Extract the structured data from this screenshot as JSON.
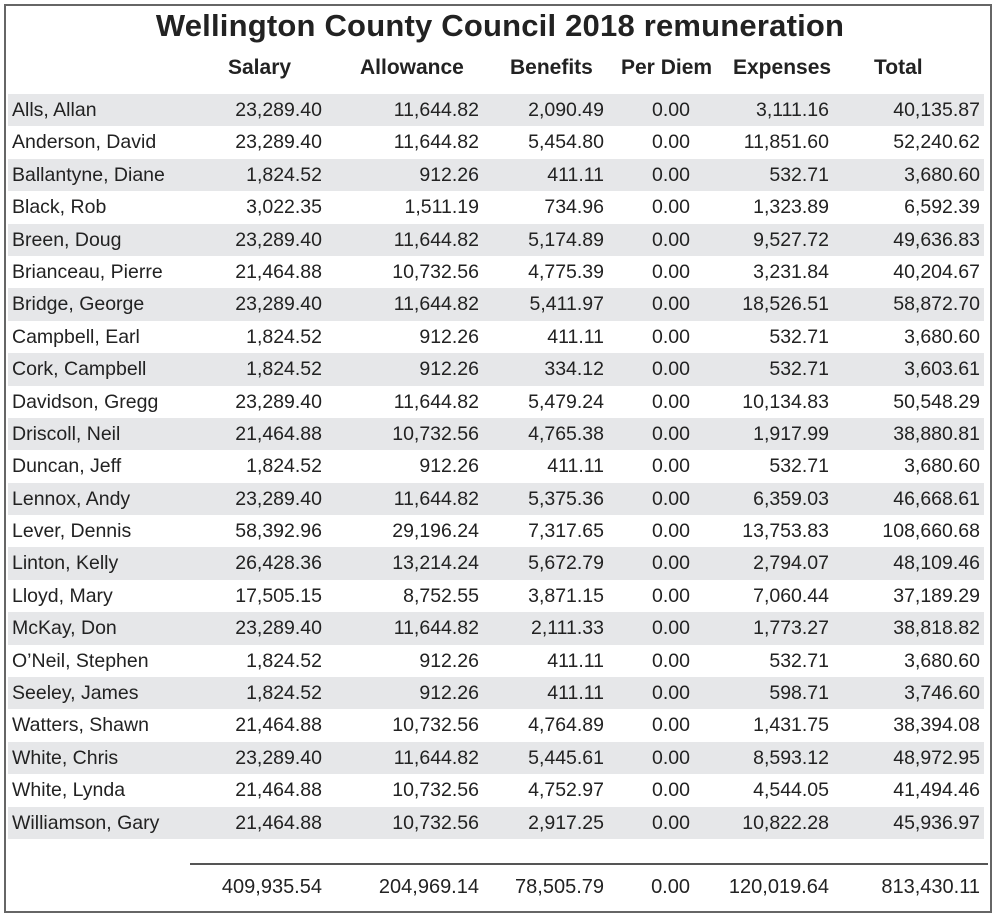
{
  "title": "Wellington County Council 2018 remuneration",
  "columns": [
    "Salary",
    "Allowance",
    "Benefits",
    "Per Diem",
    "Expenses",
    "Total"
  ],
  "rows": [
    {
      "name": "Alls, Allan",
      "salary": "23,289.40",
      "allowance": "11,644.82",
      "benefits": "2,090.49",
      "per_diem": "0.00",
      "expenses": "3,111.16",
      "total": "40,135.87"
    },
    {
      "name": "Anderson, David",
      "salary": "23,289.40",
      "allowance": "11,644.82",
      "benefits": "5,454.80",
      "per_diem": "0.00",
      "expenses": "11,851.60",
      "total": "52,240.62"
    },
    {
      "name": "Ballantyne, Diane",
      "salary": "1,824.52",
      "allowance": "912.26",
      "benefits": "411.11",
      "per_diem": "0.00",
      "expenses": "532.71",
      "total": "3,680.60"
    },
    {
      "name": "Black, Rob",
      "salary": "3,022.35",
      "allowance": "1,511.19",
      "benefits": "734.96",
      "per_diem": "0.00",
      "expenses": "1,323.89",
      "total": "6,592.39"
    },
    {
      "name": "Breen, Doug",
      "salary": "23,289.40",
      "allowance": "11,644.82",
      "benefits": "5,174.89",
      "per_diem": "0.00",
      "expenses": "9,527.72",
      "total": "49,636.83"
    },
    {
      "name": "Brianceau, Pierre",
      "salary": "21,464.88",
      "allowance": "10,732.56",
      "benefits": "4,775.39",
      "per_diem": "0.00",
      "expenses": "3,231.84",
      "total": "40,204.67"
    },
    {
      "name": "Bridge, George",
      "salary": "23,289.40",
      "allowance": "11,644.82",
      "benefits": "5,411.97",
      "per_diem": "0.00",
      "expenses": "18,526.51",
      "total": "58,872.70"
    },
    {
      "name": "Campbell, Earl",
      "salary": "1,824.52",
      "allowance": "912.26",
      "benefits": "411.11",
      "per_diem": "0.00",
      "expenses": "532.71",
      "total": "3,680.60"
    },
    {
      "name": "Cork, Campbell",
      "salary": "1,824.52",
      "allowance": "912.26",
      "benefits": "334.12",
      "per_diem": "0.00",
      "expenses": "532.71",
      "total": "3,603.61"
    },
    {
      "name": "Davidson, Gregg",
      "salary": "23,289.40",
      "allowance": "11,644.82",
      "benefits": "5,479.24",
      "per_diem": "0.00",
      "expenses": "10,134.83",
      "total": "50,548.29"
    },
    {
      "name": "Driscoll, Neil",
      "salary": "21,464.88",
      "allowance": "10,732.56",
      "benefits": "4,765.38",
      "per_diem": "0.00",
      "expenses": "1,917.99",
      "total": "38,880.81"
    },
    {
      "name": "Duncan, Jeff",
      "salary": "1,824.52",
      "allowance": "912.26",
      "benefits": "411.11",
      "per_diem": "0.00",
      "expenses": "532.71",
      "total": "3,680.60"
    },
    {
      "name": "Lennox, Andy",
      "salary": "23,289.40",
      "allowance": "11,644.82",
      "benefits": "5,375.36",
      "per_diem": "0.00",
      "expenses": "6,359.03",
      "total": "46,668.61"
    },
    {
      "name": "Lever, Dennis",
      "salary": "58,392.96",
      "allowance": "29,196.24",
      "benefits": "7,317.65",
      "per_diem": "0.00",
      "expenses": "13,753.83",
      "total": "108,660.68"
    },
    {
      "name": "Linton, Kelly",
      "salary": "26,428.36",
      "allowance": "13,214.24",
      "benefits": "5,672.79",
      "per_diem": "0.00",
      "expenses": "2,794.07",
      "total": "48,109.46"
    },
    {
      "name": "Lloyd, Mary",
      "salary": "17,505.15",
      "allowance": "8,752.55",
      "benefits": "3,871.15",
      "per_diem": "0.00",
      "expenses": "7,060.44",
      "total": "37,189.29"
    },
    {
      "name": "McKay, Don",
      "salary": "23,289.40",
      "allowance": "11,644.82",
      "benefits": "2,111.33",
      "per_diem": "0.00",
      "expenses": "1,773.27",
      "total": "38,818.82"
    },
    {
      "name": "O’Neil, Stephen",
      "salary": "1,824.52",
      "allowance": "912.26",
      "benefits": "411.11",
      "per_diem": "0.00",
      "expenses": "532.71",
      "total": "3,680.60"
    },
    {
      "name": "Seeley, James",
      "salary": "1,824.52",
      "allowance": "912.26",
      "benefits": "411.11",
      "per_diem": "0.00",
      "expenses": "598.71",
      "total": "3,746.60"
    },
    {
      "name": "Watters, Shawn",
      "salary": "21,464.88",
      "allowance": "10,732.56",
      "benefits": "4,764.89",
      "per_diem": "0.00",
      "expenses": "1,431.75",
      "total": "38,394.08"
    },
    {
      "name": "White, Chris",
      "salary": "23,289.40",
      "allowance": "11,644.82",
      "benefits": "5,445.61",
      "per_diem": "0.00",
      "expenses": "8,593.12",
      "total": "48,972.95"
    },
    {
      "name": "White, Lynda",
      "salary": "21,464.88",
      "allowance": "10,732.56",
      "benefits": "4,752.97",
      "per_diem": "0.00",
      "expenses": "4,544.05",
      "total": "41,494.46"
    },
    {
      "name": "Williamson, Gary",
      "salary": "21,464.88",
      "allowance": "10,732.56",
      "benefits": "2,917.25",
      "per_diem": "0.00",
      "expenses": "10,822.28",
      "total": "45,936.97"
    }
  ],
  "totals": {
    "salary": "409,935.54",
    "allowance": "204,969.14",
    "benefits": "78,505.79",
    "per_diem": "0.00",
    "expenses": "120,019.64",
    "total": "813,430.11"
  },
  "colors": {
    "row_shade": "#e6e7e9",
    "border": "#666666",
    "text": "#222222"
  }
}
